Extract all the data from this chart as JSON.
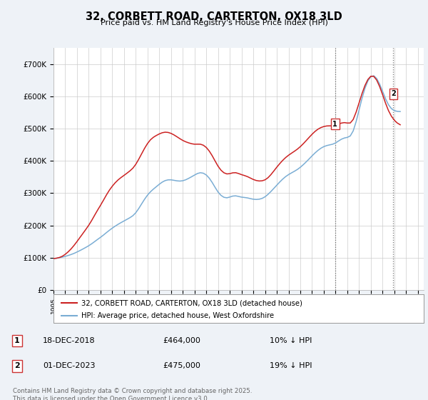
{
  "title": "32, CORBETT ROAD, CARTERTON, OX18 3LD",
  "subtitle": "Price paid vs. HM Land Registry's House Price Index (HPI)",
  "ylabel_ticks": [
    "£0",
    "£100K",
    "£200K",
    "£300K",
    "£400K",
    "£500K",
    "£600K",
    "£700K"
  ],
  "ytick_vals": [
    0,
    100000,
    200000,
    300000,
    400000,
    500000,
    600000,
    700000
  ],
  "ylim": [
    0,
    750000
  ],
  "xlim_start": 1995.0,
  "xlim_end": 2026.5,
  "background_color": "#eef2f7",
  "plot_bg": "#ffffff",
  "grid_color": "#cccccc",
  "hpi_color": "#7aadd4",
  "price_color": "#cc2222",
  "legend_label_price": "32, CORBETT ROAD, CARTERTON, OX18 3LD (detached house)",
  "legend_label_hpi": "HPI: Average price, detached house, West Oxfordshire",
  "sale1_date": "18-DEC-2018",
  "sale1_price": "£464,000",
  "sale1_note": "10% ↓ HPI",
  "sale2_date": "01-DEC-2023",
  "sale2_price": "£475,000",
  "sale2_note": "19% ↓ HPI",
  "footer": "Contains HM Land Registry data © Crown copyright and database right 2025.\nThis data is licensed under the Open Government Licence v3.0.",
  "sale1_x": 2018.96,
  "sale1_y": 464000,
  "sale2_x": 2023.92,
  "sale2_y": 475000,
  "hpi_x": [
    1995.0,
    1995.25,
    1995.5,
    1995.75,
    1996.0,
    1996.25,
    1996.5,
    1996.75,
    1997.0,
    1997.25,
    1997.5,
    1997.75,
    1998.0,
    1998.25,
    1998.5,
    1998.75,
    1999.0,
    1999.25,
    1999.5,
    1999.75,
    2000.0,
    2000.25,
    2000.5,
    2000.75,
    2001.0,
    2001.25,
    2001.5,
    2001.75,
    2002.0,
    2002.25,
    2002.5,
    2002.75,
    2003.0,
    2003.25,
    2003.5,
    2003.75,
    2004.0,
    2004.25,
    2004.5,
    2004.75,
    2005.0,
    2005.25,
    2005.5,
    2005.75,
    2006.0,
    2006.25,
    2006.5,
    2006.75,
    2007.0,
    2007.25,
    2007.5,
    2007.75,
    2008.0,
    2008.25,
    2008.5,
    2008.75,
    2009.0,
    2009.25,
    2009.5,
    2009.75,
    2010.0,
    2010.25,
    2010.5,
    2010.75,
    2011.0,
    2011.25,
    2011.5,
    2011.75,
    2012.0,
    2012.25,
    2012.5,
    2012.75,
    2013.0,
    2013.25,
    2013.5,
    2013.75,
    2014.0,
    2014.25,
    2014.5,
    2014.75,
    2015.0,
    2015.25,
    2015.5,
    2015.75,
    2016.0,
    2016.25,
    2016.5,
    2016.75,
    2017.0,
    2017.25,
    2017.5,
    2017.75,
    2018.0,
    2018.25,
    2018.5,
    2018.75,
    2019.0,
    2019.25,
    2019.5,
    2019.75,
    2020.0,
    2020.25,
    2020.5,
    2020.75,
    2021.0,
    2021.25,
    2021.5,
    2021.75,
    2022.0,
    2022.25,
    2022.5,
    2022.75,
    2023.0,
    2023.25,
    2023.5,
    2023.75,
    2024.0,
    2024.25,
    2024.5
  ],
  "hpi_y": [
    97000,
    98000,
    100000,
    102000,
    104000,
    107000,
    110000,
    113000,
    118000,
    122000,
    127000,
    132000,
    137000,
    143000,
    150000,
    157000,
    163000,
    170000,
    178000,
    185000,
    192000,
    198000,
    204000,
    209000,
    214000,
    219000,
    224000,
    229000,
    238000,
    252000,
    267000,
    282000,
    295000,
    305000,
    313000,
    320000,
    328000,
    335000,
    340000,
    342000,
    342000,
    340000,
    338000,
    337000,
    338000,
    341000,
    346000,
    351000,
    356000,
    362000,
    365000,
    363000,
    358000,
    348000,
    334000,
    318000,
    302000,
    292000,
    286000,
    284000,
    288000,
    292000,
    293000,
    290000,
    287000,
    287000,
    286000,
    283000,
    281000,
    280000,
    281000,
    283000,
    288000,
    296000,
    305000,
    315000,
    325000,
    335000,
    344000,
    352000,
    358000,
    363000,
    368000,
    373000,
    380000,
    388000,
    397000,
    406000,
    416000,
    425000,
    433000,
    440000,
    445000,
    448000,
    450000,
    451000,
    455000,
    462000,
    468000,
    472000,
    473000,
    473000,
    488000,
    520000,
    558000,
    596000,
    628000,
    651000,
    665000,
    668000,
    658000,
    640000,
    616000,
    591000,
    572000,
    560000,
    555000,
    553000,
    553000
  ],
  "price_y_raw": [
    97000,
    98500,
    100000,
    104000,
    110000,
    118000,
    127000,
    138000,
    150000,
    163000,
    175000,
    188000,
    200000,
    215000,
    232000,
    248000,
    262000,
    278000,
    295000,
    310000,
    322000,
    333000,
    342000,
    349000,
    355000,
    362000,
    369000,
    376000,
    388000,
    405000,
    422000,
    440000,
    455000,
    467000,
    474000,
    479000,
    484000,
    488000,
    490000,
    489000,
    486000,
    481000,
    475000,
    469000,
    463000,
    459000,
    456000,
    453000,
    451000,
    452000,
    453000,
    450000,
    443000,
    432000,
    417000,
    400000,
    382000,
    370000,
    362000,
    358000,
    360000,
    364000,
    365000,
    361000,
    357000,
    355000,
    352000,
    347000,
    342000,
    339000,
    337000,
    338000,
    340000,
    347000,
    357000,
    369000,
    381000,
    392000,
    402000,
    411000,
    418000,
    424000,
    430000,
    436000,
    444000,
    453000,
    463000,
    473000,
    483000,
    492000,
    499000,
    504000,
    507000,
    509000,
    509000,
    508000,
    510000,
    514000,
    518000,
    520000,
    518000,
    513000,
    524000,
    550000,
    580000,
    610000,
    636000,
    655000,
    666000,
    666000,
    653000,
    632000,
    606000,
    578000,
    554000,
    537000,
    525000,
    517000,
    510000
  ]
}
